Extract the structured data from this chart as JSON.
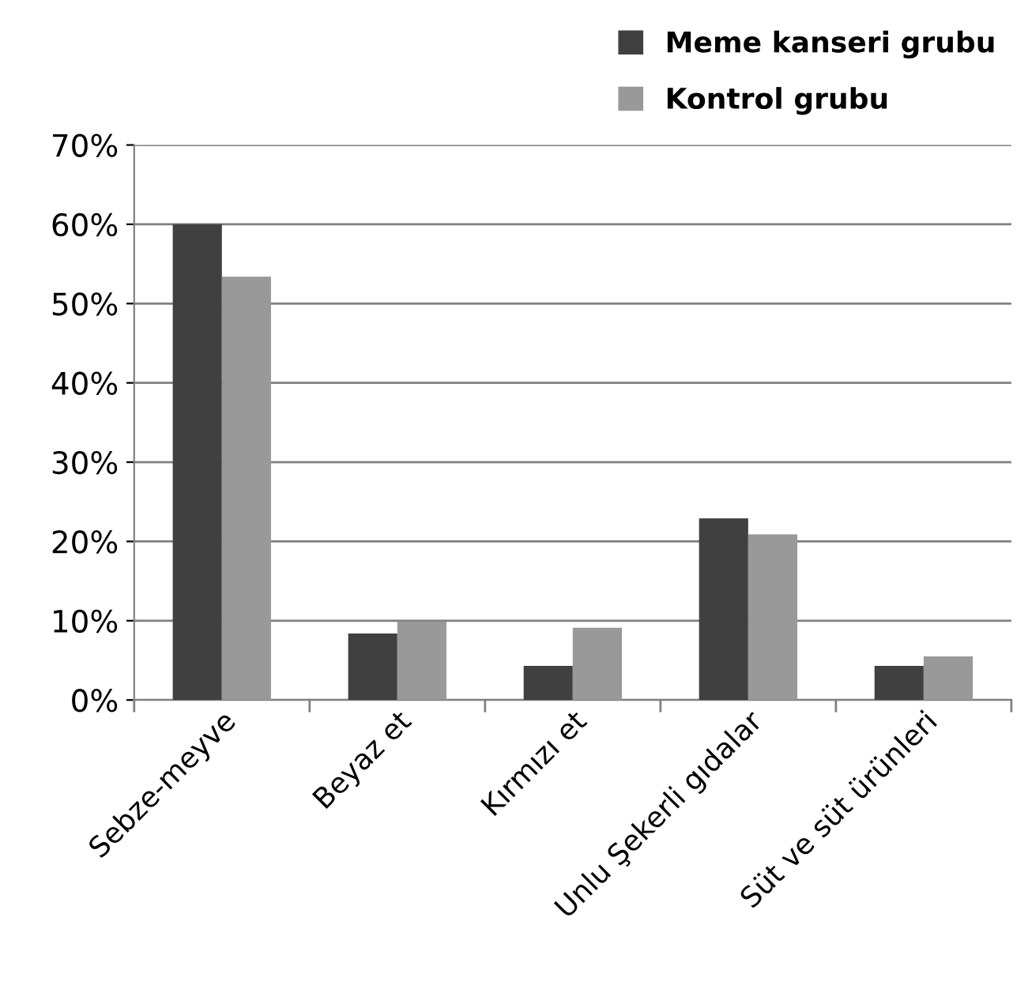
{
  "chart_data": {
    "type": "bar",
    "categories": [
      "Sebze-meyve",
      "Beyaz et",
      "Kırmızı et",
      "Unlu Şekerli gıdalar",
      "Süt ve süt ürünleri"
    ],
    "series": [
      {
        "name": "Meme kanseri grubu",
        "color": "#404040",
        "values": [
          60,
          8.4,
          4.3,
          22.9,
          4.3
        ]
      },
      {
        "name": "Kontrol grubu",
        "color": "#999999",
        "values": [
          53.4,
          9.9,
          9.1,
          20.9,
          5.5
        ]
      }
    ],
    "ylim": [
      0,
      70
    ],
    "yticks": [
      {
        "value": 0,
        "label": "0%"
      },
      {
        "value": 10,
        "label": "10%"
      },
      {
        "value": 20,
        "label": "20%"
      },
      {
        "value": 30,
        "label": "30%"
      },
      {
        "value": 40,
        "label": "40%"
      },
      {
        "value": 50,
        "label": "50%"
      },
      {
        "value": 60,
        "label": "60%"
      },
      {
        "value": 70,
        "label": "70%"
      }
    ],
    "grid": "y",
    "legend": "top right"
  }
}
